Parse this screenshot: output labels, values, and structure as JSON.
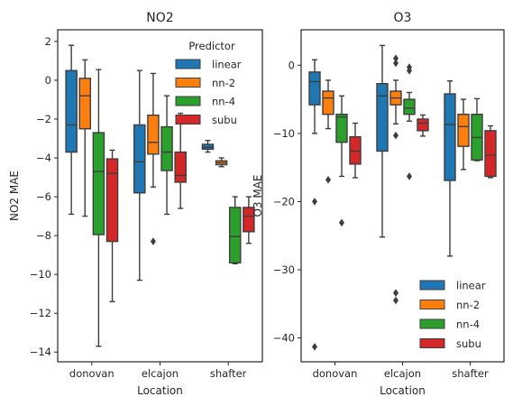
{
  "chart_data": [
    {
      "type": "box",
      "title": "NO2",
      "xlabel": "Location",
      "ylabel": "NO2 MAE",
      "ylim": [
        -14.5,
        2.6
      ],
      "yticks": [
        2,
        0,
        -2,
        -4,
        -6,
        -8,
        -10,
        -12,
        -14
      ],
      "categories": [
        "donovan",
        "elcajon",
        "shafter"
      ],
      "legend": {
        "title": "Predictor",
        "placement": "top-right"
      },
      "series": [
        {
          "name": "linear",
          "color": "#1f77b4",
          "boxes": [
            {
              "category": "donovan",
              "whislo": -6.9,
              "q1": -3.7,
              "med": -2.3,
              "q3": 0.5,
              "whishi": 1.8,
              "fliers": []
            },
            {
              "category": "elcajon",
              "whislo": -10.3,
              "q1": -5.8,
              "med": -4.2,
              "q3": -2.3,
              "whishi": 0.5,
              "fliers": []
            },
            {
              "category": "shafter",
              "whislo": -3.7,
              "q1": -3.55,
              "med": -3.45,
              "q3": -3.3,
              "whishi": -3.1,
              "fliers": []
            }
          ]
        },
        {
          "name": "nn-2",
          "color": "#ff7f0e",
          "boxes": [
            {
              "category": "donovan",
              "whislo": -7.0,
              "q1": -2.5,
              "med": -0.8,
              "q3": 0.1,
              "whishi": 1.05,
              "fliers": []
            },
            {
              "category": "elcajon",
              "whislo": -5.5,
              "q1": -3.8,
              "med": -3.2,
              "q3": -1.8,
              "whishi": 0.35,
              "fliers": [
                -8.3
              ]
            },
            {
              "category": "shafter",
              "whislo": -4.45,
              "q1": -4.35,
              "med": -4.25,
              "q3": -4.15,
              "whishi": -4.0,
              "fliers": []
            }
          ]
        },
        {
          "name": "nn-4",
          "color": "#2ca02c",
          "boxes": [
            {
              "category": "donovan",
              "whislo": -13.7,
              "q1": -7.95,
              "med": -4.7,
              "q3": -2.7,
              "whishi": 0.55,
              "fliers": []
            },
            {
              "category": "elcajon",
              "whislo": -6.9,
              "q1": -4.65,
              "med": -3.7,
              "q3": -2.4,
              "whishi": -0.8,
              "fliers": []
            },
            {
              "category": "shafter",
              "whislo": -9.45,
              "q1": -9.4,
              "med": -8.05,
              "q3": -6.55,
              "whishi": -6.0,
              "fliers": []
            }
          ]
        },
        {
          "name": "subu",
          "color": "#d62728",
          "boxes": [
            {
              "category": "donovan",
              "whislo": -11.4,
              "q1": -8.3,
              "med": -4.8,
              "q3": -4.05,
              "whishi": -3.6,
              "fliers": []
            },
            {
              "category": "elcajon",
              "whislo": -6.6,
              "q1": -5.25,
              "med": -4.9,
              "q3": -3.7,
              "whishi": -1.7,
              "fliers": []
            },
            {
              "category": "shafter",
              "whislo": -8.4,
              "q1": -7.8,
              "med": -7.0,
              "q3": -6.55,
              "whishi": -6.0,
              "fliers": []
            }
          ]
        }
      ]
    },
    {
      "type": "box",
      "title": "O3",
      "xlabel": "Location",
      "ylabel": "O3 MAE",
      "ylim": [
        -43.5,
        5.2
      ],
      "yticks": [
        0,
        -10,
        -20,
        -30,
        -40
      ],
      "categories": [
        "donovan",
        "elcajon",
        "shafter"
      ],
      "legend": {
        "title": "",
        "placement": "bottom-right"
      },
      "series": [
        {
          "name": "linear",
          "color": "#1f77b4",
          "boxes": [
            {
              "category": "donovan",
              "whislo": -10.0,
              "q1": -5.8,
              "med": -2.4,
              "q3": -1.0,
              "whishi": 0.8,
              "fliers": [
                -20.0,
                -41.3
              ]
            },
            {
              "category": "elcajon",
              "whislo": -25.2,
              "q1": -12.6,
              "med": -4.5,
              "q3": -2.7,
              "whishi": 2.9,
              "fliers": []
            },
            {
              "category": "shafter",
              "whislo": -28.0,
              "q1": -16.9,
              "med": -8.7,
              "q3": -4.2,
              "whishi": -2.3,
              "fliers": []
            }
          ]
        },
        {
          "name": "nn-2",
          "color": "#ff7f0e",
          "boxes": [
            {
              "category": "donovan",
              "whislo": -9.3,
              "q1": -7.2,
              "med": -4.8,
              "q3": -3.8,
              "whishi": -2.2,
              "fliers": [
                -16.8
              ]
            },
            {
              "category": "elcajon",
              "whislo": -8.6,
              "q1": -5.8,
              "med": -4.8,
              "q3": -3.8,
              "whishi": -2.2,
              "fliers": [
                1.0,
                0.3,
                -10.3,
                -33.4,
                -34.5
              ]
            },
            {
              "category": "shafter",
              "whislo": -15.3,
              "q1": -11.9,
              "med": -9.0,
              "q3": -7.2,
              "whishi": -5.0,
              "fliers": []
            }
          ]
        },
        {
          "name": "nn-4",
          "color": "#2ca02c",
          "boxes": [
            {
              "category": "donovan",
              "whislo": -16.3,
              "q1": -11.3,
              "med": -7.6,
              "q3": -7.2,
              "whishi": -4.5,
              "fliers": [
                -23.1
              ]
            },
            {
              "category": "elcajon",
              "whislo": -8.2,
              "q1": -7.2,
              "med": -6.3,
              "q3": -5.0,
              "whishi": -4.0,
              "fliers": [
                -0.3,
                -0.8,
                -16.3
              ]
            },
            {
              "category": "shafter",
              "whislo": -14.0,
              "q1": -13.9,
              "med": -10.6,
              "q3": -7.2,
              "whishi": -4.9,
              "fliers": []
            }
          ]
        },
        {
          "name": "subu",
          "color": "#d62728",
          "boxes": [
            {
              "category": "donovan",
              "whislo": -16.5,
              "q1": -14.5,
              "med": -12.6,
              "q3": -10.5,
              "whishi": -8.5,
              "fliers": []
            },
            {
              "category": "elcajon",
              "whislo": -10.4,
              "q1": -9.6,
              "med": -8.5,
              "q3": -7.9,
              "whishi": -7.3,
              "fliers": []
            },
            {
              "category": "shafter",
              "whislo": -16.5,
              "q1": -16.3,
              "med": -13.2,
              "q3": -9.6,
              "whishi": -8.9,
              "fliers": []
            }
          ]
        }
      ]
    }
  ]
}
